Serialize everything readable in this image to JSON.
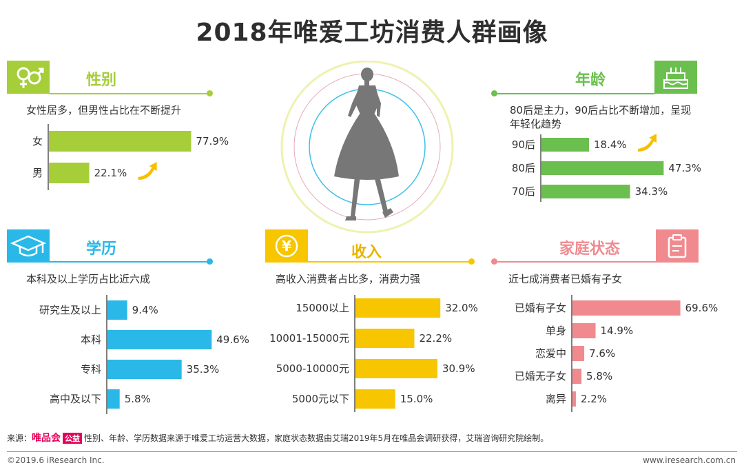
{
  "title": "2018年唯爱工坊消费人群画像",
  "colors": {
    "gender": "#a6ce39",
    "age": "#6bbf4e",
    "education": "#29b8e8",
    "income": "#f7c600",
    "family": "#f08a8f",
    "arrow": "#f6c000"
  },
  "sections": {
    "gender": {
      "title": "性别",
      "subtitle": "女性居多，但男性占比在不断提升",
      "icon": "gender-symbols-icon"
    },
    "age": {
      "title": "年龄",
      "subtitle_line1": "80后是主力，90后占比不断增加，呈现",
      "subtitle_line2": "年轻化趋势",
      "icon": "birthday-cake-icon"
    },
    "education": {
      "title": "学历",
      "subtitle": "本科及以上学历占比近六成",
      "icon": "graduation-cap-icon"
    },
    "income": {
      "title": "收入",
      "subtitle": "高收入消费者占比多，消费力强",
      "icon": "yen-coin-icon"
    },
    "family": {
      "title": "家庭状态",
      "subtitle": "近七成消费者已婚有子女",
      "icon": "clipboard-icon"
    }
  },
  "center_figure": "woman-silhouette-icon",
  "chart_data": [
    {
      "id": "gender",
      "type": "bar",
      "orientation": "horizontal",
      "categories": [
        "女",
        "男"
      ],
      "values": [
        77.9,
        22.1
      ],
      "labels": [
        "77.9%",
        "22.1%"
      ],
      "trend_up": "男"
    },
    {
      "id": "age",
      "type": "bar",
      "orientation": "horizontal",
      "categories": [
        "90后",
        "80后",
        "70后"
      ],
      "values": [
        18.4,
        47.3,
        34.3
      ],
      "labels": [
        "18.4%",
        "47.3%",
        "34.3%"
      ],
      "trend_up": "90后"
    },
    {
      "id": "education",
      "type": "bar",
      "orientation": "horizontal",
      "categories": [
        "研究生及以上",
        "本科",
        "专科",
        "高中及以下"
      ],
      "values": [
        9.4,
        49.6,
        35.3,
        5.8
      ],
      "labels": [
        "9.4%",
        "49.6%",
        "35.3%",
        "5.8%"
      ]
    },
    {
      "id": "income",
      "type": "bar",
      "orientation": "horizontal",
      "categories": [
        "15000以上",
        "10001-15000元",
        "5000-10000元",
        "5000元以下"
      ],
      "values": [
        32.0,
        22.2,
        30.9,
        15.0
      ],
      "labels": [
        "32.0%",
        "22.2%",
        "30.9%",
        "15.0%"
      ]
    },
    {
      "id": "family",
      "type": "bar",
      "orientation": "horizontal",
      "categories": [
        "已婚有子女",
        "单身",
        "恋爱中",
        "已婚无子女",
        "离异"
      ],
      "values": [
        69.6,
        14.9,
        7.6,
        5.8,
        2.2
      ],
      "labels": [
        "69.6%",
        "14.9%",
        "7.6%",
        "5.8%",
        "2.2%"
      ]
    }
  ],
  "source": {
    "prefix": "来源：",
    "brand": "唯品会",
    "brand_tag": "公益",
    "text": "性别、年龄、学历数据来源于唯爱工坊运营大数据，家庭状态数据由艾瑞2019年5月在唯品会调研获得，艾瑞咨询研究院绘制。"
  },
  "footer": {
    "copyright": "©2019.6 iResearch Inc.",
    "website": "www.iresearch.com.cn"
  }
}
